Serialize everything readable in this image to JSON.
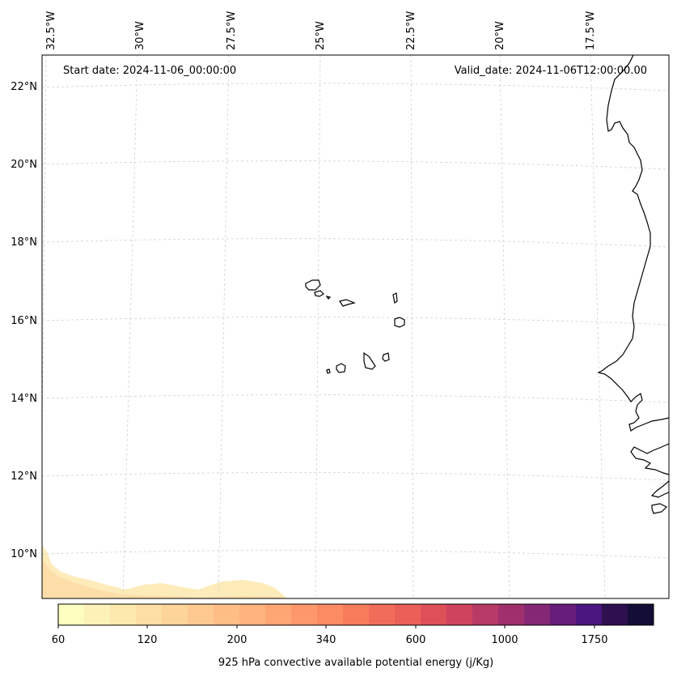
{
  "header": {
    "start_date": "Start date: 2024-11-06_00:00:00",
    "valid_date": "Valid_date: 2024-11-06T12:00:00.00"
  },
  "axes": {
    "lon_labels": [
      "32.5°W",
      "30°W",
      "27.5°W",
      "25°W",
      "22.5°W",
      "20°W",
      "17.5°W"
    ],
    "lat_labels": [
      "22°N",
      "20°N",
      "18°N",
      "16°N",
      "14°N",
      "12°N",
      "10°N"
    ]
  },
  "colorbar": {
    "title": "925 hPa convective available potential energy (j/Kg)",
    "tick_labels": [
      "60",
      "120",
      "200",
      "340",
      "600",
      "1000",
      "1750"
    ],
    "colors": [
      "#fcfdbf",
      "#fcf2b8",
      "#fde8ae",
      "#fddea4",
      "#fdd49a",
      "#fec990",
      "#febe86",
      "#feb27d",
      "#fea674",
      "#fe986c",
      "#fc8a63",
      "#f97c5d",
      "#f26d59",
      "#ea5f57",
      "#de5058",
      "#cf445d",
      "#b83a66",
      "#a0306d",
      "#842876",
      "#661d7c",
      "#4b167f",
      "#2e1050",
      "#140e36"
    ]
  },
  "chart_data": {
    "type": "heatmap",
    "title": "",
    "variable": "925 hPa convective available potential energy (j/Kg)",
    "x_range_lon": [
      -32.5,
      -16.0
    ],
    "y_range_lat": [
      9.0,
      22.5
    ],
    "grid": "on (dashed)",
    "colorbar_levels": [
      60,
      120,
      200,
      340,
      600,
      1000,
      1750
    ],
    "observed_cape_region": "low values (~60-120) along the southern edge near 9-10°N, west of 25°W"
  }
}
